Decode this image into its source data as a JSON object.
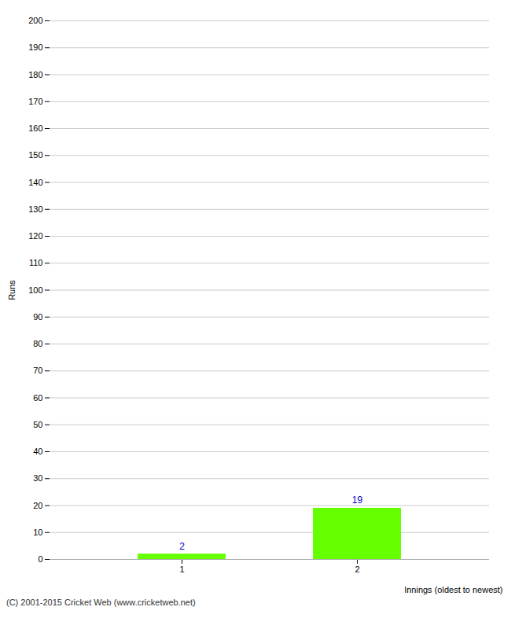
{
  "chart_data": {
    "type": "bar",
    "categories": [
      1,
      2
    ],
    "values": [
      2,
      19
    ],
    "color": "#66ff00",
    "xlabel": "Innings (oldest to newest)",
    "ylabel": "Runs",
    "ylim": [
      0,
      200
    ],
    "yticks": [
      0,
      10,
      20,
      30,
      40,
      50,
      60,
      70,
      80,
      90,
      100,
      110,
      120,
      130,
      140,
      150,
      160,
      170,
      180,
      190,
      200
    ],
    "grid": true,
    "data_labels": true,
    "annotations": [
      "(C) 2001-2015 Cricket Web (www.cricketweb.net)"
    ]
  }
}
